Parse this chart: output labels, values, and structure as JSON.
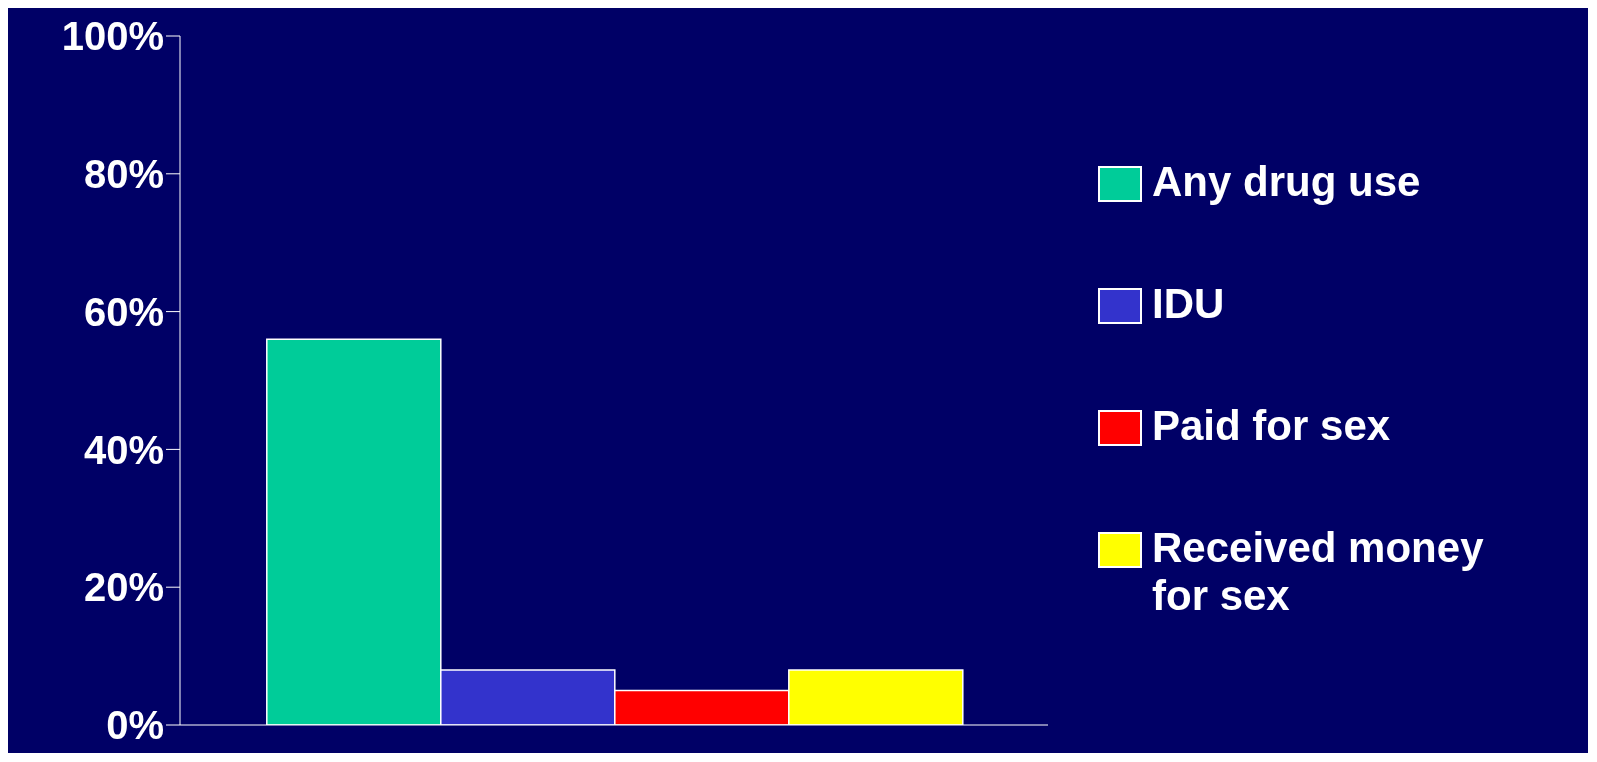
{
  "chart_data": {
    "type": "bar",
    "categories": [
      null
    ],
    "series": [
      {
        "name": "Any drug use",
        "color": "#00cc99",
        "values": [
          56
        ]
      },
      {
        "name": "IDU",
        "color": "#3333cc",
        "values": [
          8
        ]
      },
      {
        "name": "Paid for sex",
        "color": "#ff0000",
        "values": [
          5
        ]
      },
      {
        "name": "Received money for sex",
        "color": "#ffff00",
        "values": [
          8
        ]
      }
    ],
    "ylim": [
      0,
      100
    ],
    "yticks": [
      {
        "value": 0,
        "label": "0%"
      },
      {
        "value": 20,
        "label": "20%"
      },
      {
        "value": 40,
        "label": "40%"
      },
      {
        "value": 60,
        "label": "60%"
      },
      {
        "value": 80,
        "label": "80%"
      },
      {
        "value": 100,
        "label": "100%"
      }
    ],
    "grid": false,
    "legend": "right"
  }
}
